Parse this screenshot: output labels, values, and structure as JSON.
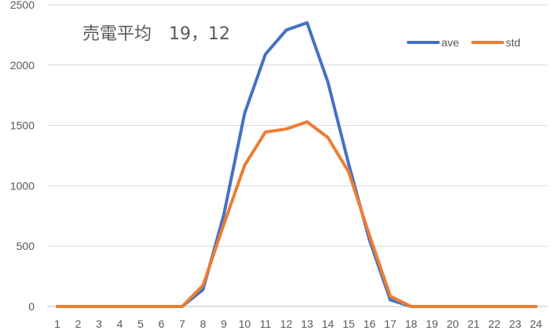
{
  "chart_data": {
    "type": "line",
    "title": "売電平均　19，12",
    "x": [
      1,
      2,
      3,
      4,
      5,
      6,
      7,
      8,
      9,
      10,
      11,
      12,
      13,
      14,
      15,
      16,
      17,
      18,
      19,
      20,
      21,
      22,
      23,
      24
    ],
    "ylim": [
      0,
      2500
    ],
    "yticks": [
      0,
      500,
      1000,
      1500,
      2000,
      2500
    ],
    "grid": true,
    "legend_position": "top-right",
    "series": [
      {
        "name": "ave",
        "color": "#4472C4",
        "values": [
          0,
          0,
          0,
          0,
          0,
          0,
          0,
          140,
          760,
          1600,
          2090,
          2290,
          2350,
          1860,
          1180,
          550,
          55,
          0,
          0,
          0,
          0,
          0,
          0,
          0
        ]
      },
      {
        "name": "std",
        "color": "#ED7D31",
        "values": [
          0,
          0,
          0,
          0,
          0,
          0,
          0,
          175,
          680,
          1170,
          1445,
          1470,
          1530,
          1400,
          1115,
          590,
          85,
          0,
          0,
          0,
          0,
          0,
          0,
          0
        ]
      }
    ]
  }
}
